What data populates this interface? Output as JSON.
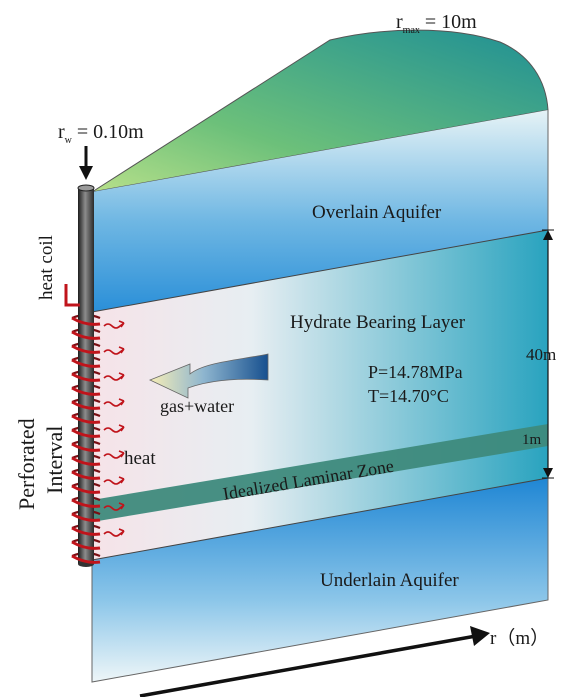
{
  "labels": {
    "rmax_prefix": "r",
    "rmax_sub": "max",
    "rmax_value": " = 10m",
    "rw_prefix": "r",
    "rw_sub": "w",
    "rw_value": " = 0.10m",
    "heat_coil": "heat  coil",
    "perforated": "Perforated",
    "interval": "Interval",
    "overlain_aquifer": "Overlain Aquifer",
    "hydrate_bearing_layer": "Hydrate Bearing Layer",
    "pressure": "P=14.78MPa",
    "temperature": "T=14.70°C",
    "gas_water": "gas+water",
    "heat": "heat",
    "laminar_zone": "Idealized Laminar Zone",
    "thickness_40m": "40m",
    "thickness_1m": "1m",
    "underlain_aquifer": "Underlain Aquifer",
    "r_axis": "r（m）"
  },
  "colors": {
    "top_green": "#7cc47a",
    "top_teal": "#2f9e95",
    "aquifer_blue": "#2a8fd8",
    "aquifer_light": "#e8f3f6",
    "laminar_zone": "#3e8a7c",
    "coil_red": "#c0141b",
    "pipe_dark": "#333333"
  },
  "icons": {
    "wellbore": "cylinder-pipe",
    "flow_arrow": "curved-arrow",
    "heat_arrows": "wavy-red-arrows"
  }
}
